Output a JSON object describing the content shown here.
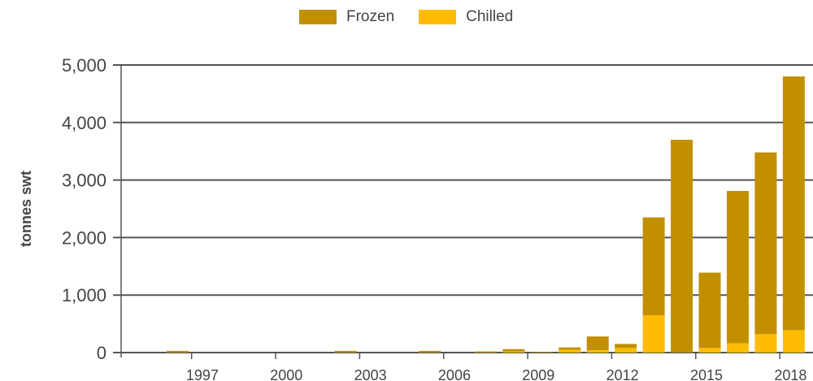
{
  "colors": {
    "frozen": "#C18F00",
    "chilled": "#FFBC00",
    "grid": "#555555",
    "axis_text": "#444444"
  },
  "legend": [
    {
      "key": "frozen",
      "label": "Frozen"
    },
    {
      "key": "chilled",
      "label": "Chilled"
    }
  ],
  "chart_data": {
    "type": "bar",
    "stacked": true,
    "ylabel": "tonnes swt",
    "xlabel": "",
    "ylim": [
      0,
      5000
    ],
    "yticks": [
      0,
      1000,
      2000,
      3000,
      4000,
      5000
    ],
    "ytick_labels": [
      "0",
      "1,000",
      "2,000",
      "3,000",
      "4,000",
      "5,000"
    ],
    "xtick_labels": [
      "1997",
      "2000",
      "2003",
      "2006",
      "2009",
      "2012",
      "2015",
      "2018"
    ],
    "categories": [
      "1995",
      "1996",
      "1997",
      "1998",
      "1999",
      "2000",
      "2001",
      "2002",
      "2003",
      "2004",
      "2005",
      "2006",
      "2007",
      "2008",
      "2009",
      "2010",
      "2011",
      "2012",
      "2013",
      "2014",
      "2015",
      "2016",
      "2017",
      "2018"
    ],
    "series": [
      {
        "name": "Chilled",
        "key": "chilled",
        "values": [
          0,
          0,
          0,
          0,
          0,
          0,
          0,
          0,
          0,
          0,
          0,
          0,
          0,
          20,
          0,
          50,
          40,
          80,
          650,
          0,
          80,
          160,
          320,
          390
        ]
      },
      {
        "name": "Frozen",
        "key": "frozen",
        "values": [
          0,
          30,
          0,
          0,
          0,
          0,
          0,
          30,
          0,
          0,
          30,
          0,
          20,
          40,
          10,
          40,
          240,
          70,
          1700,
          3700,
          1310,
          2650,
          3160,
          4410
        ]
      }
    ],
    "grid": true,
    "legend_position": "top"
  }
}
